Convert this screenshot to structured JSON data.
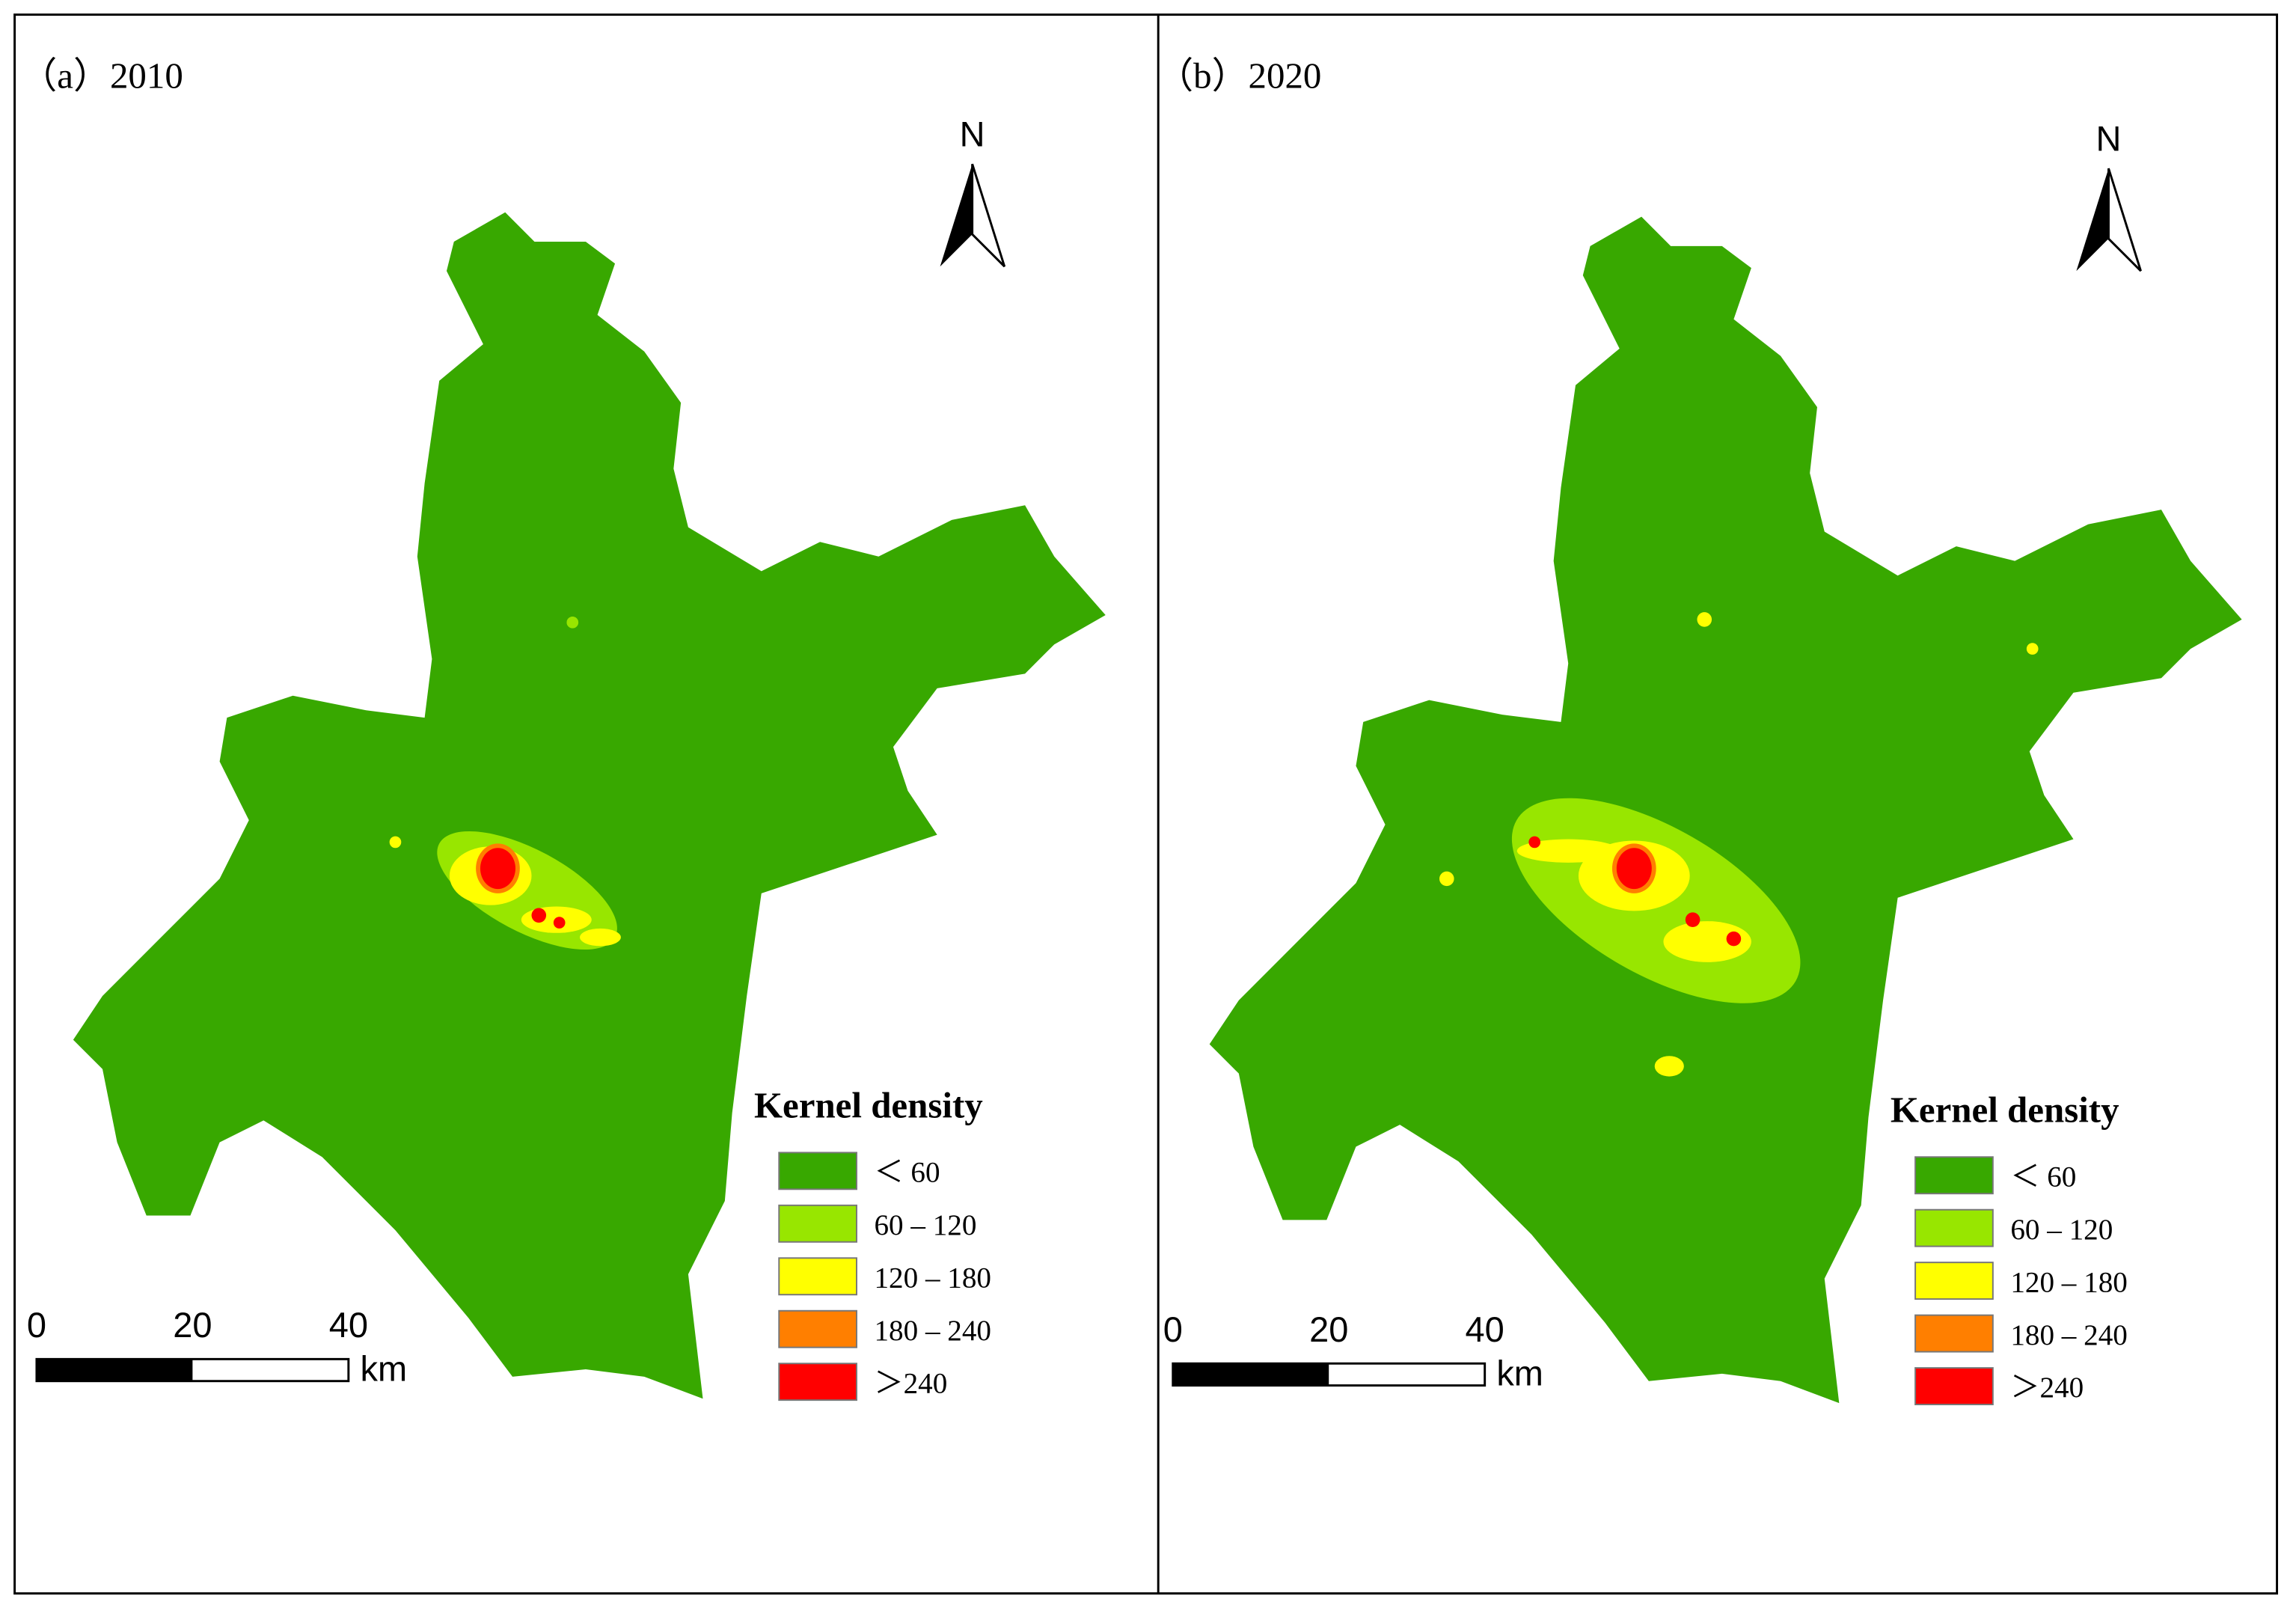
{
  "panels": [
    {
      "label": "（a）2010",
      "north": "N",
      "legend": {
        "title": "Kernel density",
        "items": [
          {
            "label": "＜ 60",
            "color": "#38a800"
          },
          {
            "label": "60 – 120",
            "color": "#98e600"
          },
          {
            "label": "120 – 180",
            "color": "#ffff00"
          },
          {
            "label": "180 – 240",
            "color": "#ff7f00"
          },
          {
            "label": "＞240",
            "color": "#ff0000"
          }
        ]
      },
      "scale_bar": {
        "ticks": [
          0,
          20,
          40
        ],
        "unit": "km"
      }
    },
    {
      "label": "（b）2020",
      "north": "N",
      "legend": {
        "title": "Kernel density",
        "items": [
          {
            "label": "＜ 60",
            "color": "#38a800"
          },
          {
            "label": "60 – 120",
            "color": "#98e600"
          },
          {
            "label": "120 – 180",
            "color": "#ffff00"
          },
          {
            "label": "180 – 240",
            "color": "#ff7f00"
          },
          {
            "label": "＞240",
            "color": "#ff0000"
          }
        ]
      },
      "scale_bar": {
        "ticks": [
          0,
          20,
          40
        ],
        "unit": "km"
      }
    }
  ]
}
